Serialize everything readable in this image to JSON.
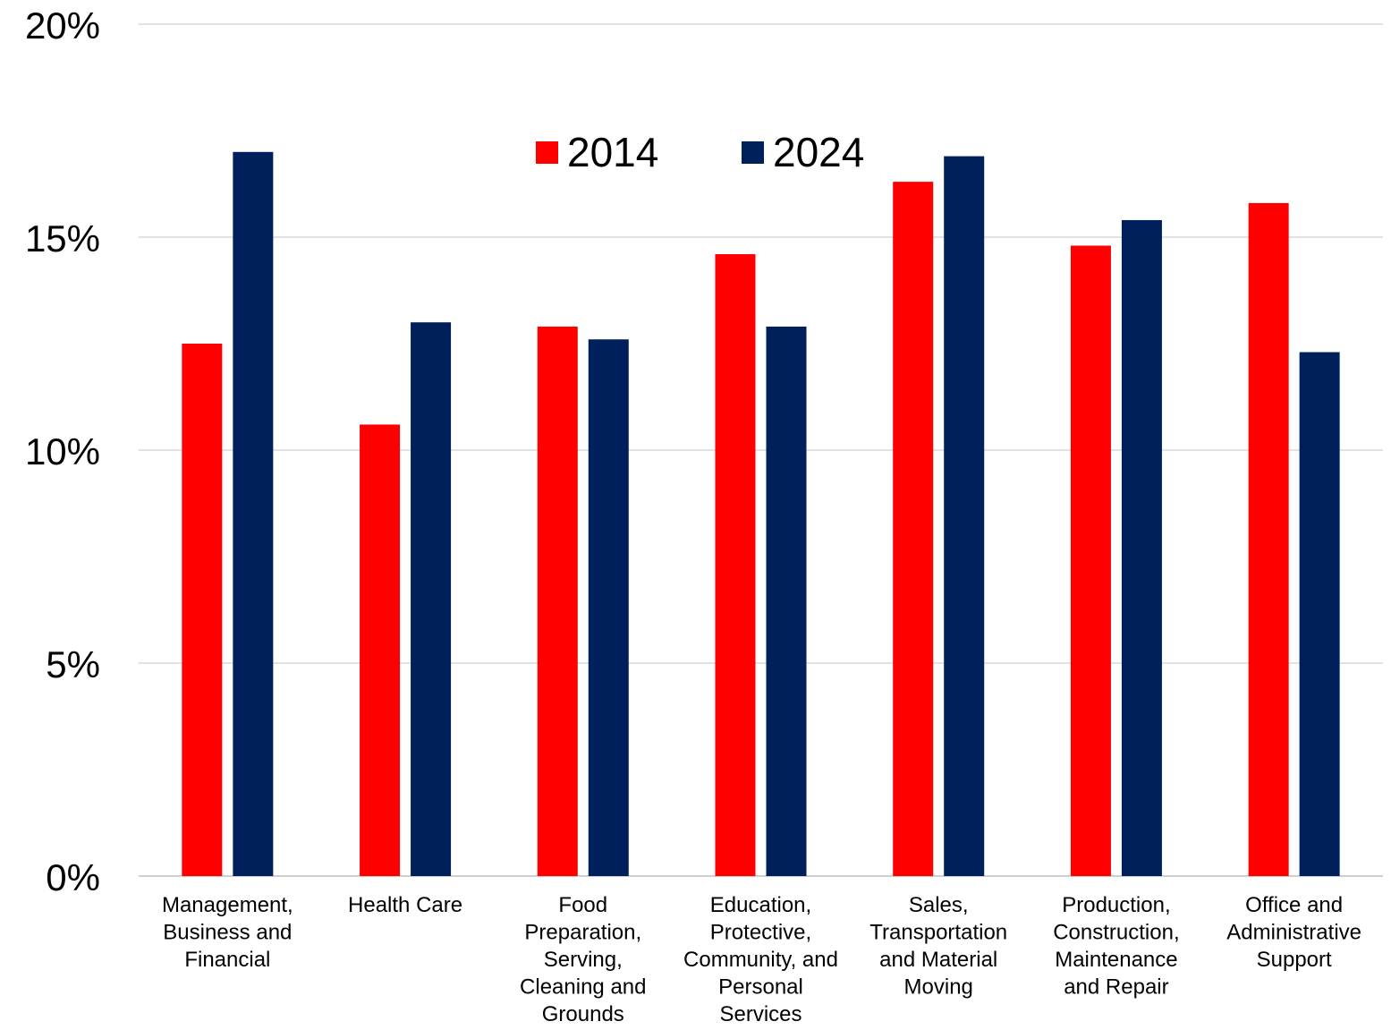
{
  "chart_data": {
    "type": "bar",
    "categories": [
      [
        "Management,",
        "Business and",
        "Financial"
      ],
      [
        "Health Care"
      ],
      [
        "Food",
        "Preparation,",
        "Serving,",
        "Cleaning and",
        "Grounds"
      ],
      [
        "Education,",
        "Protective,",
        "Community, and",
        "Personal",
        "Services"
      ],
      [
        "Sales,",
        "Transportation",
        "and Material",
        "Moving"
      ],
      [
        "Production,",
        "Construction,",
        "Maintenance",
        "and Repair"
      ],
      [
        "Office and",
        "Administrative",
        "Support"
      ]
    ],
    "series": [
      {
        "name": "2014",
        "color": "#ff0000",
        "values": [
          12.5,
          10.6,
          12.9,
          14.6,
          16.3,
          14.8,
          15.8
        ]
      },
      {
        "name": "2024",
        "color": "#00205b",
        "values": [
          17.0,
          13.0,
          12.6,
          12.9,
          16.9,
          15.4,
          12.3
        ]
      }
    ],
    "ylim": [
      0,
      20
    ],
    "yticks": [
      0,
      5,
      10,
      15,
      20
    ],
    "ytick_labels": [
      "0%",
      "5%",
      "10%",
      "15%",
      "20%"
    ],
    "grid": true,
    "legend_position": "top-center",
    "title": "",
    "xlabel": "",
    "ylabel": ""
  }
}
